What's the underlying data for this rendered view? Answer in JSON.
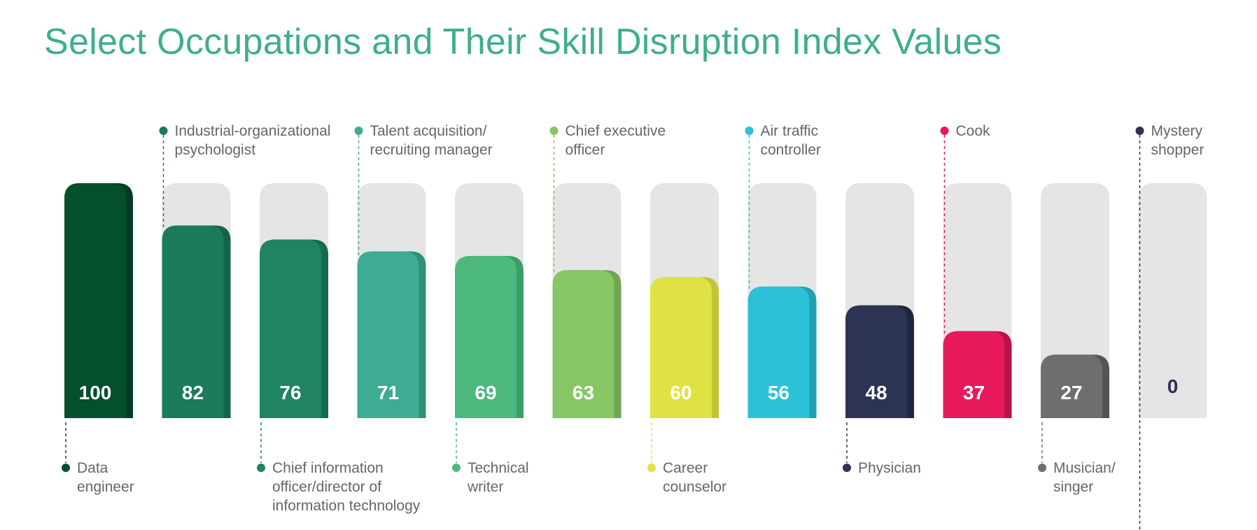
{
  "title": "Select Occupations and Their Skill Disruption Index Values",
  "chart_data": {
    "type": "bar",
    "title": "Select Occupations and Their Skill Disruption Index Values",
    "xlabel": "",
    "ylabel": "",
    "ylim": [
      0,
      100
    ],
    "grid": false,
    "legend": "none",
    "categories": [
      "Data engineer",
      "Industrial-organizational psychologist",
      "Chief information officer/director of information technology",
      "Talent acquisition/ recruiting manager",
      "Technical writer",
      "Chief executive officer",
      "Career counselor",
      "Air traffic controller",
      "Physician",
      "Cook",
      "Musician/ singer",
      "Mystery shopper"
    ],
    "label_lines": [
      [
        "Data",
        "engineer"
      ],
      [
        "Industrial-organizational",
        "psychologist"
      ],
      [
        "Chief information",
        "officer/director of",
        "information technology"
      ],
      [
        "Talent acquisition/",
        "recruiting manager"
      ],
      [
        "Technical",
        "writer"
      ],
      [
        "Chief executive",
        "officer"
      ],
      [
        "Career",
        "counselor"
      ],
      [
        "Air traffic",
        "controller"
      ],
      [
        "Physician"
      ],
      [
        "Cook"
      ],
      [
        "Musician/",
        "singer"
      ],
      [
        "Mystery",
        "shopper"
      ]
    ],
    "label_position": [
      "bottom",
      "top",
      "bottom",
      "top",
      "bottom",
      "top",
      "bottom",
      "top",
      "bottom",
      "top",
      "bottom",
      "top"
    ],
    "values": [
      100,
      82,
      76,
      71,
      69,
      63,
      60,
      56,
      48,
      37,
      27,
      0
    ],
    "value_labels": [
      "100",
      "82",
      "76",
      "71",
      "69",
      "63",
      "60",
      "56",
      "48",
      "37",
      "27",
      "0"
    ],
    "colors": [
      "#034f2e",
      "#1a7b59",
      "#1f8460",
      "#3dac92",
      "#4db87c",
      "#86c663",
      "#dee343",
      "#2bc1d6",
      "#2d3353",
      "#e7195a",
      "#6e6e6e",
      "#2d3353"
    ],
    "side_colors": [
      "#023d23",
      "#136446",
      "#176b4d",
      "#2d9078",
      "#3a9e67",
      "#6ea651",
      "#c2c632",
      "#1fa0b5",
      "#20263f",
      "#b81347",
      "#545454",
      "#20263f"
    ],
    "track_color": "#e5e5e5",
    "value_text_color": "#ffffff",
    "zero_value_text_color": "#2d3353",
    "label_text_color": "#666666",
    "title_color": "#3fae8c"
  }
}
